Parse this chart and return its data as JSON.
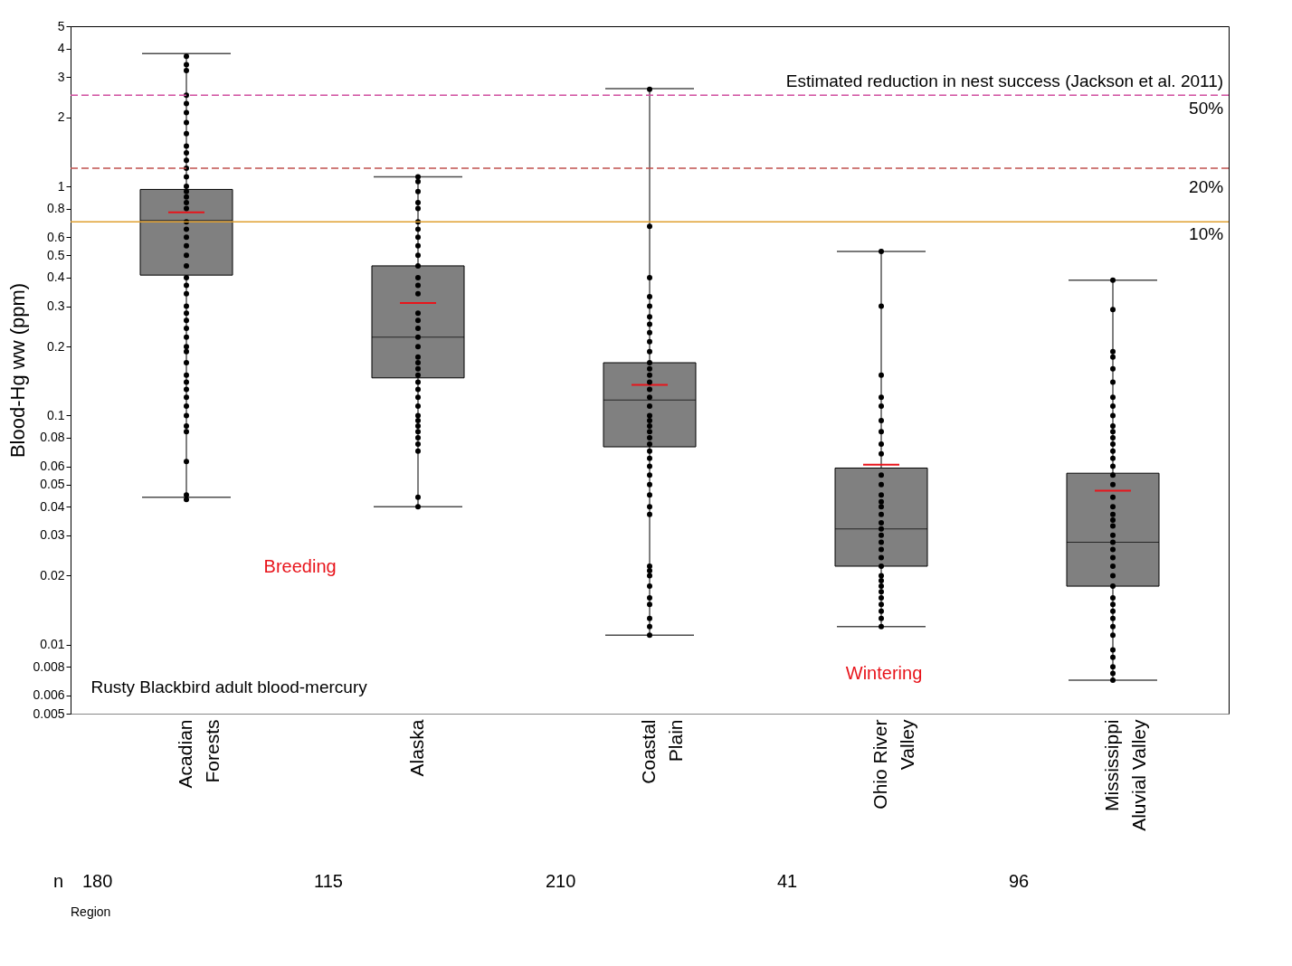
{
  "chart_data": {
    "type": "box",
    "ylabel": "Blood-Hg ww (ppm)",
    "log": true,
    "grid": false,
    "categories": [
      "Acadian Forests",
      "Alaska",
      "Coastal Plain",
      "Ohio River Valley",
      "Mississippi Aluvial Valley"
    ],
    "ylim": [
      0.005,
      5
    ],
    "yticks": [
      0.005,
      0.006,
      0.008,
      0.01,
      0.02,
      0.03,
      0.04,
      0.05,
      0.06,
      0.08,
      0.1,
      0.2,
      0.3,
      0.4,
      0.5,
      0.6,
      0.8,
      1,
      2,
      3,
      4,
      5
    ],
    "series": [
      {
        "color": "#808080",
        "boxes": [
          {
            "low": 0.044,
            "q1": 0.41,
            "median": 0.71,
            "q3": 0.97,
            "high": 3.8,
            "mean": 0.77
          },
          {
            "low": 0.04,
            "q1": 0.146,
            "median": 0.22,
            "q3": 0.45,
            "high": 1.1,
            "mean": 0.31
          },
          {
            "low": 0.011,
            "q1": 0.073,
            "median": 0.117,
            "q3": 0.17,
            "high": 2.67,
            "mean": 0.136
          },
          {
            "low": 0.012,
            "q1": 0.022,
            "median": 0.032,
            "q3": 0.059,
            "high": 0.52,
            "mean": 0.061
          },
          {
            "low": 0.007,
            "q1": 0.018,
            "median": 0.028,
            "q3": 0.056,
            "high": 0.39,
            "mean": 0.047
          }
        ]
      },
      {
        "type": "scatter",
        "color": "#000000",
        "marker": "circle",
        "x": [
          "Acadian Forests",
          "Acadian Forests",
          "Acadian Forests",
          "Acadian Forests",
          "Acadian Forests",
          "Acadian Forests",
          "Acadian Forests",
          "Acadian Forests",
          "Acadian Forests",
          "Acadian Forests",
          "Acadian Forests",
          "Acadian Forests",
          "Acadian Forests",
          "Acadian Forests",
          "Acadian Forests",
          "Acadian Forests",
          "Acadian Forests",
          "Acadian Forests",
          "Acadian Forests",
          "Acadian Forests",
          "Acadian Forests",
          "Acadian Forests",
          "Acadian Forests",
          "Acadian Forests",
          "Acadian Forests",
          "Acadian Forests",
          "Acadian Forests",
          "Acadian Forests",
          "Acadian Forests",
          "Acadian Forests",
          "Acadian Forests",
          "Acadian Forests",
          "Acadian Forests",
          "Acadian Forests",
          "Acadian Forests",
          "Acadian Forests",
          "Acadian Forests",
          "Acadian Forests",
          "Acadian Forests",
          "Acadian Forests",
          "Acadian Forests",
          "Acadian Forests",
          "Acadian Forests",
          "Acadian Forests",
          "Acadian Forests",
          "Acadian Forests",
          "Alaska",
          "Alaska",
          "Alaska",
          "Alaska",
          "Alaska",
          "Alaska",
          "Alaska",
          "Alaska",
          "Alaska",
          "Alaska",
          "Alaska",
          "Alaska",
          "Alaska",
          "Alaska",
          "Alaska",
          "Alaska",
          "Alaska",
          "Alaska",
          "Alaska",
          "Alaska",
          "Alaska",
          "Alaska",
          "Alaska",
          "Alaska",
          "Alaska",
          "Alaska",
          "Alaska",
          "Alaska",
          "Alaska",
          "Alaska",
          "Alaska",
          "Alaska",
          "Alaska",
          "Alaska",
          "Alaska",
          "Alaska",
          "Coastal Plain",
          "Coastal Plain",
          "Coastal Plain",
          "Coastal Plain",
          "Coastal Plain",
          "Coastal Plain",
          "Coastal Plain",
          "Coastal Plain",
          "Coastal Plain",
          "Coastal Plain",
          "Coastal Plain",
          "Coastal Plain",
          "Coastal Plain",
          "Coastal Plain",
          "Coastal Plain",
          "Coastal Plain",
          "Coastal Plain",
          "Coastal Plain",
          "Coastal Plain",
          "Coastal Plain",
          "Coastal Plain",
          "Coastal Plain",
          "Coastal Plain",
          "Coastal Plain",
          "Coastal Plain",
          "Coastal Plain",
          "Coastal Plain",
          "Coastal Plain",
          "Coastal Plain",
          "Coastal Plain",
          "Coastal Plain",
          "Coastal Plain",
          "Coastal Plain",
          "Coastal Plain",
          "Coastal Plain",
          "Coastal Plain",
          "Coastal Plain",
          "Coastal Plain",
          "Coastal Plain",
          "Coastal Plain",
          "Ohio River Valley",
          "Ohio River Valley",
          "Ohio River Valley",
          "Ohio River Valley",
          "Ohio River Valley",
          "Ohio River Valley",
          "Ohio River Valley",
          "Ohio River Valley",
          "Ohio River Valley",
          "Ohio River Valley",
          "Ohio River Valley",
          "Ohio River Valley",
          "Ohio River Valley",
          "Ohio River Valley",
          "Ohio River Valley",
          "Ohio River Valley",
          "Ohio River Valley",
          "Ohio River Valley",
          "Ohio River Valley",
          "Ohio River Valley",
          "Ohio River Valley",
          "Ohio River Valley",
          "Ohio River Valley",
          "Ohio River Valley",
          "Ohio River Valley",
          "Ohio River Valley",
          "Ohio River Valley",
          "Ohio River Valley",
          "Ohio River Valley",
          "Ohio River Valley",
          "Ohio River Valley",
          "Mississippi Aluvial Valley",
          "Mississippi Aluvial Valley",
          "Mississippi Aluvial Valley",
          "Mississippi Aluvial Valley",
          "Mississippi Aluvial Valley",
          "Mississippi Aluvial Valley",
          "Mississippi Aluvial Valley",
          "Mississippi Aluvial Valley",
          "Mississippi Aluvial Valley",
          "Mississippi Aluvial Valley",
          "Mississippi Aluvial Valley",
          "Mississippi Aluvial Valley",
          "Mississippi Aluvial Valley",
          "Mississippi Aluvial Valley",
          "Mississippi Aluvial Valley",
          "Mississippi Aluvial Valley",
          "Mississippi Aluvial Valley",
          "Mississippi Aluvial Valley",
          "Mississippi Aluvial Valley",
          "Mississippi Aluvial Valley",
          "Mississippi Aluvial Valley",
          "Mississippi Aluvial Valley",
          "Mississippi Aluvial Valley",
          "Mississippi Aluvial Valley",
          "Mississippi Aluvial Valley",
          "Mississippi Aluvial Valley",
          "Mississippi Aluvial Valley",
          "Mississippi Aluvial Valley",
          "Mississippi Aluvial Valley",
          "Mississippi Aluvial Valley",
          "Mississippi Aluvial Valley",
          "Mississippi Aluvial Valley",
          "Mississippi Aluvial Valley",
          "Mississippi Aluvial Valley",
          "Mississippi Aluvial Valley",
          "Mississippi Aluvial Valley",
          "Mississippi Aluvial Valley",
          "Mississippi Aluvial Valley",
          "Mississippi Aluvial Valley",
          "Mississippi Aluvial Valley",
          "Mississippi Aluvial Valley"
        ],
        "values": [
          3.7,
          3.4,
          3.2,
          2.5,
          2.3,
          2.1,
          1.9,
          1.7,
          1.5,
          1.4,
          1.3,
          1.2,
          1.1,
          1.0,
          0.95,
          0.9,
          0.85,
          0.8,
          0.7,
          0.65,
          0.6,
          0.55,
          0.5,
          0.45,
          0.4,
          0.37,
          0.34,
          0.3,
          0.28,
          0.26,
          0.24,
          0.22,
          0.2,
          0.19,
          0.17,
          0.15,
          0.14,
          0.13,
          0.12,
          0.11,
          0.1,
          0.09,
          0.085,
          0.063,
          0.045,
          0.043,
          1.1,
          1.05,
          0.95,
          0.85,
          0.8,
          0.7,
          0.65,
          0.6,
          0.55,
          0.5,
          0.45,
          0.4,
          0.37,
          0.34,
          0.28,
          0.26,
          0.24,
          0.22,
          0.2,
          0.18,
          0.17,
          0.16,
          0.15,
          0.14,
          0.13,
          0.12,
          0.11,
          0.1,
          0.095,
          0.09,
          0.085,
          0.08,
          0.075,
          0.07,
          0.044,
          0.04,
          2.65,
          0.67,
          0.4,
          0.33,
          0.3,
          0.27,
          0.25,
          0.23,
          0.21,
          0.19,
          0.17,
          0.16,
          0.15,
          0.14,
          0.13,
          0.12,
          0.11,
          0.1,
          0.095,
          0.09,
          0.085,
          0.08,
          0.075,
          0.07,
          0.065,
          0.06,
          0.055,
          0.05,
          0.045,
          0.04,
          0.037,
          0.022,
          0.021,
          0.02,
          0.018,
          0.016,
          0.015,
          0.013,
          0.012,
          0.011,
          0.52,
          0.3,
          0.15,
          0.12,
          0.11,
          0.095,
          0.085,
          0.075,
          0.068,
          0.055,
          0.05,
          0.045,
          0.042,
          0.04,
          0.037,
          0.034,
          0.032,
          0.03,
          0.028,
          0.026,
          0.024,
          0.022,
          0.02,
          0.019,
          0.018,
          0.017,
          0.016,
          0.015,
          0.014,
          0.013,
          0.012,
          0.39,
          0.29,
          0.19,
          0.18,
          0.16,
          0.14,
          0.12,
          0.11,
          0.1,
          0.09,
          0.085,
          0.08,
          0.075,
          0.07,
          0.065,
          0.06,
          0.055,
          0.05,
          0.044,
          0.04,
          0.037,
          0.035,
          0.033,
          0.03,
          0.028,
          0.026,
          0.024,
          0.022,
          0.02,
          0.018,
          0.016,
          0.015,
          0.014,
          0.013,
          0.012,
          0.011,
          0.0095,
          0.0088,
          0.008,
          0.0075,
          0.007
        ]
      }
    ],
    "ref_lines": [
      {
        "axis": "y",
        "value": 2.5,
        "color": "#d04fa0",
        "line_style": "dashed"
      },
      {
        "axis": "y",
        "value": 1.2,
        "color": "#c0504d",
        "line_style": "dashed"
      },
      {
        "axis": "y",
        "value": 0.7,
        "color": "#e0a030",
        "line_style": "solid"
      }
    ],
    "annotations": [
      "Estimated reduction in nest success (Jackson et al. 2011)",
      "50%",
      "20%",
      "10%",
      "Breeding",
      "Wintering",
      "Rusty Blackbird adult blood-mercury",
      "Region",
      "n",
      "180",
      "115",
      "210",
      "41",
      "96"
    ]
  }
}
